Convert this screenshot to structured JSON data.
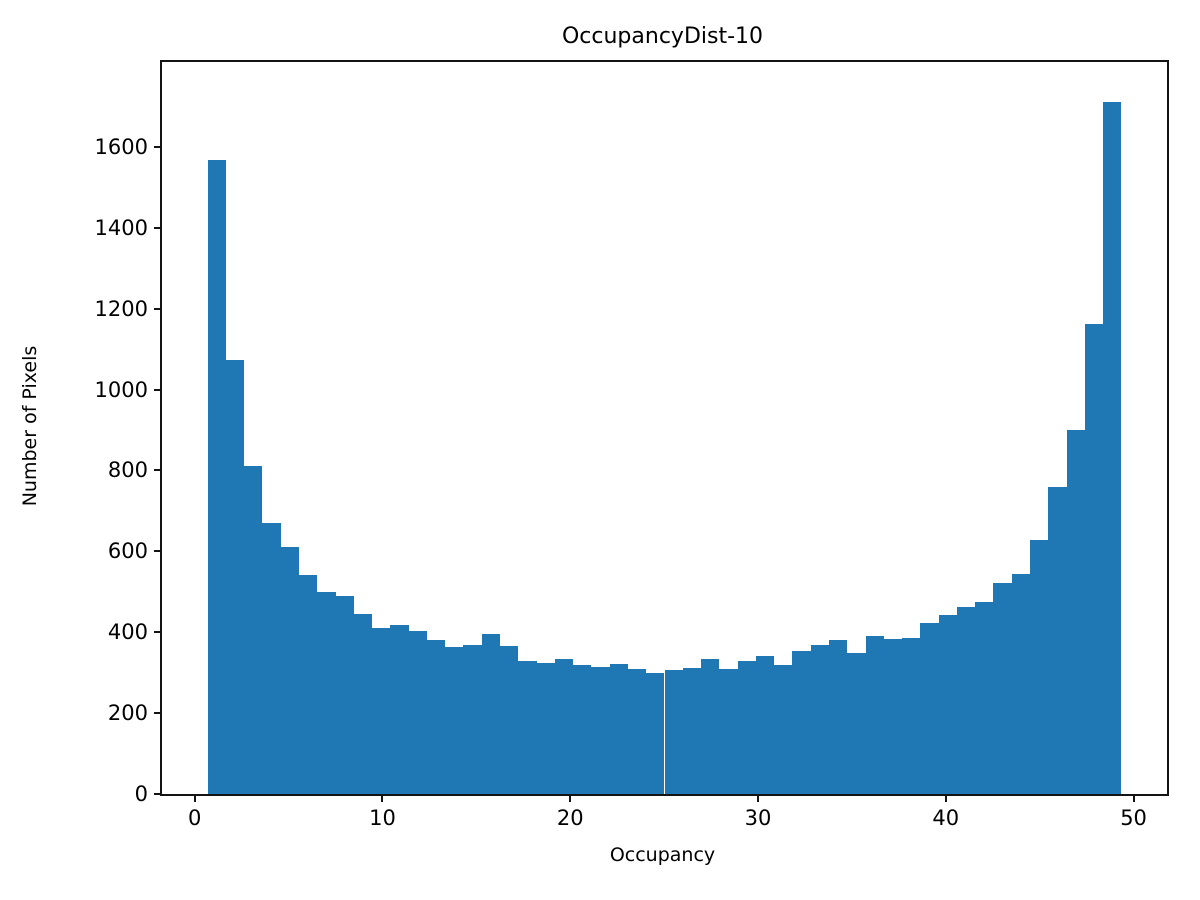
{
  "figure": {
    "background": "#ffffff",
    "spine_color": "#141414"
  },
  "chart_data": {
    "type": "bar",
    "subtype": "histogram",
    "title": "OccupancyDist-10",
    "xlabel": "Occupancy",
    "ylabel": "Number of Pixels",
    "bar_color": "#1f77b4",
    "grid": false,
    "legend": null,
    "bin_start": 0.69,
    "bin_end": 49.35,
    "n_bins": 50,
    "values": [
      1567,
      1074,
      812,
      671,
      611,
      541,
      500,
      489,
      446,
      411,
      417,
      402,
      382,
      364,
      369,
      395,
      365,
      328,
      324,
      333,
      318,
      314,
      322,
      310,
      300,
      307,
      311,
      333,
      310,
      328,
      341,
      318,
      353,
      369,
      381,
      349,
      390,
      384,
      385,
      423,
      443,
      462,
      475,
      521,
      543,
      628,
      758,
      900,
      1161,
      1710
    ],
    "xlim": [
      -1.74,
      51.78
    ],
    "ylim": [
      0,
      1810
    ],
    "x_ticks": [
      0,
      10,
      20,
      30,
      40,
      50
    ],
    "y_ticks": [
      0,
      200,
      400,
      600,
      800,
      1000,
      1200,
      1400,
      1600
    ]
  }
}
